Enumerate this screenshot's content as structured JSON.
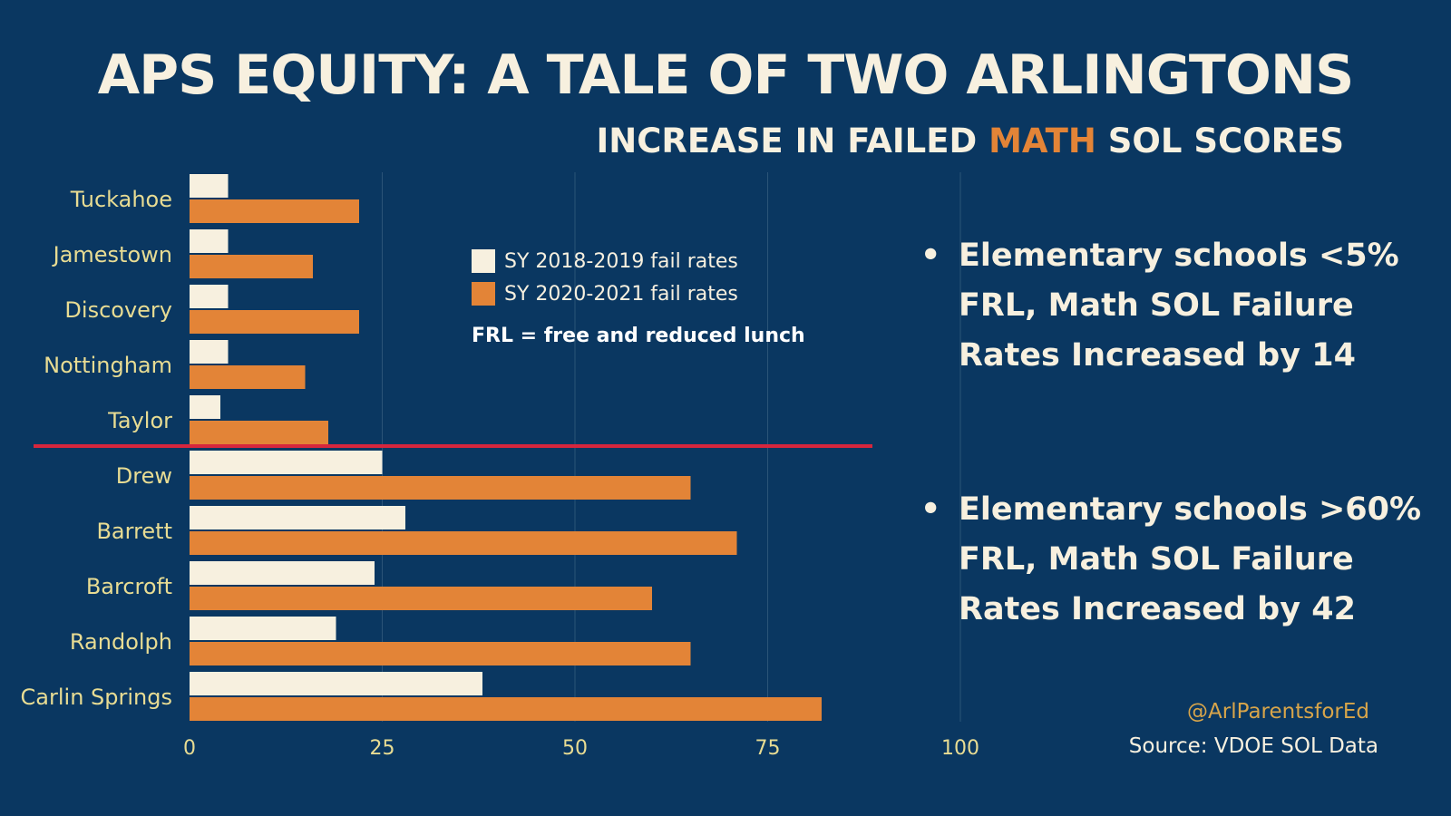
{
  "title": "APS EQUITY: A TALE OF TWO ARLINGTONS",
  "subtitle": {
    "before": "INCREASE IN FAILED ",
    "highlight": "MATH",
    "after": " SOL SCORES"
  },
  "legend": {
    "note": "FRL = free and reduced lunch"
  },
  "bullets": [
    "Elementary schools <5%\nFRL, Math SOL Failure\nRates Increased by 14",
    "Elementary schools >60%\nFRL, Math SOL Failure\nRates Increased by 42"
  ],
  "handle": "@ArlParentsforEd",
  "source": "Source: VDOE SOL Data",
  "colors": {
    "background": "#0a3761",
    "series_2019": "#f7f0df",
    "series_2021": "#e38437",
    "divider": "#d7263d",
    "category_labels": "#e8dc93",
    "grid": "#2b5478"
  },
  "chart_data": {
    "type": "bar",
    "orientation": "horizontal",
    "categories": [
      "Tuckahoe",
      "Jamestown",
      "Discovery",
      "Nottingham",
      "Taylor",
      "Drew",
      "Barrett",
      "Barcroft",
      "Randolph",
      "Carlin Springs"
    ],
    "series": [
      {
        "name": "SY 2018-2019 fail rates",
        "values": [
          5,
          5,
          5,
          5,
          4,
          25,
          28,
          24,
          19,
          38
        ]
      },
      {
        "name": "SY 2020-2021 fail rates",
        "values": [
          22,
          16,
          22,
          15,
          18,
          65,
          71,
          60,
          65,
          82
        ]
      }
    ],
    "xlim": [
      0,
      100
    ],
    "xticks": [
      0,
      25,
      50,
      75,
      100
    ],
    "divider_after_category": "Taylor",
    "grid": true
  }
}
